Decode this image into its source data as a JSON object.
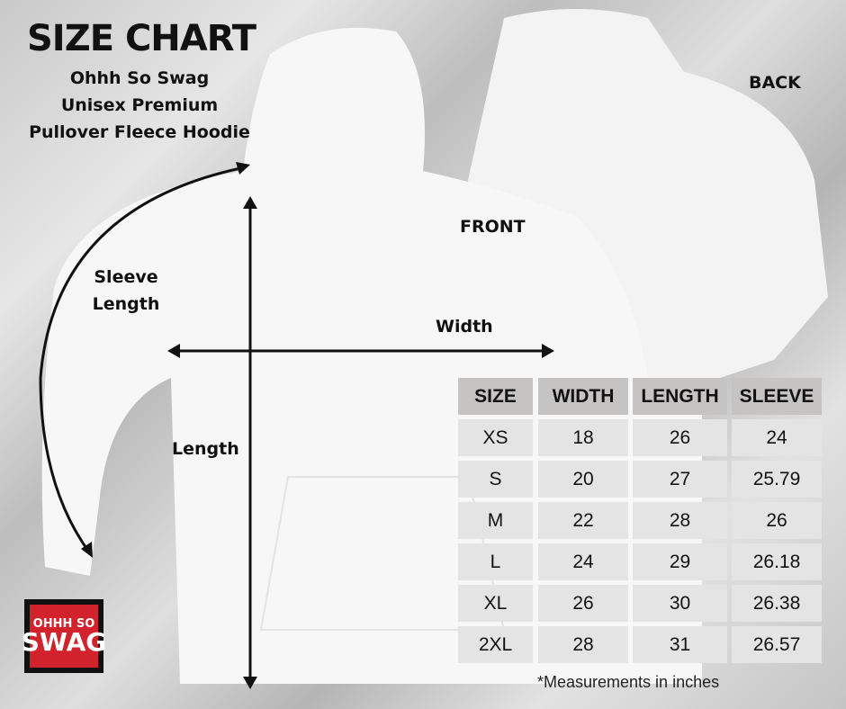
{
  "title": "SIZE CHART",
  "subtitle": [
    "Ohhh So Swag",
    "Unisex Premium",
    "Pullover Fleece Hoodie"
  ],
  "labels": {
    "back": "BACK",
    "front": "FRONT",
    "sleeve": [
      "Sleeve",
      "Length"
    ],
    "width": "Width",
    "length": "Length"
  },
  "logo": {
    "line1": "OHHH SO",
    "line2": "SWAG",
    "color": "#d2222c"
  },
  "table": {
    "headers": [
      "SIZE",
      "WIDTH",
      "LENGTH",
      "SLEEVE"
    ],
    "rows": [
      [
        "XS",
        "18",
        "26",
        "24"
      ],
      [
        "S",
        "20",
        "27",
        "25.79"
      ],
      [
        "M",
        "22",
        "28",
        "26"
      ],
      [
        "L",
        "24",
        "29",
        "26.18"
      ],
      [
        "XL",
        "26",
        "30",
        "26.38"
      ],
      [
        "2XL",
        "28",
        "31",
        "26.57"
      ]
    ]
  },
  "note": "*Measurements in inches"
}
